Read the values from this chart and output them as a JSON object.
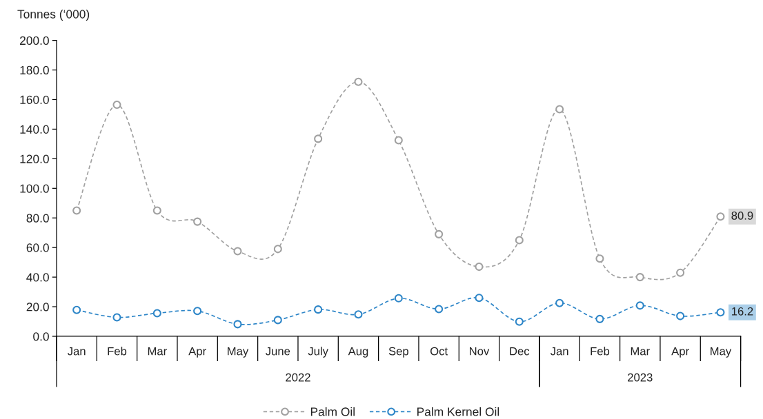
{
  "chart_data": {
    "type": "line",
    "ylabel": "Tonnes (‘000)",
    "categories": [
      "Jan",
      "Feb",
      "Mar",
      "Apr",
      "May",
      "June",
      "July",
      "Aug",
      "Sep",
      "Oct",
      "Nov",
      "Dec",
      "Jan",
      "Feb",
      "Mar",
      "Apr",
      "May"
    ],
    "ylim": [
      0,
      200
    ],
    "yticks": [
      {
        "value": 0,
        "label": "0.0"
      },
      {
        "value": 20,
        "label": "20.0"
      },
      {
        "value": 40,
        "label": "40.0"
      },
      {
        "value": 60,
        "label": "60.0"
      },
      {
        "value": 80,
        "label": "80.0"
      },
      {
        "value": 100,
        "label": "100.0"
      },
      {
        "value": 120,
        "label": "120.0"
      },
      {
        "value": 140,
        "label": "140.0"
      },
      {
        "value": 160,
        "label": "160.0"
      },
      {
        "value": 180,
        "label": "180.0"
      },
      {
        "value": 200,
        "label": "200.0"
      }
    ],
    "annotations": [
      "2022",
      "2023"
    ],
    "marker": "circle",
    "line_style": "dashed",
    "legend": "bottom",
    "series": [
      {
        "name": "Palm Oil",
        "color": "#a0a0a0",
        "values": [
          85.0,
          156.5,
          85.0,
          77.5,
          57.5,
          59.0,
          133.5,
          172.0,
          132.5,
          69.0,
          47.0,
          65.0,
          153.5,
          52.5,
          40.0,
          43.0,
          80.9
        ],
        "value_labels": [
          null,
          null,
          null,
          null,
          null,
          null,
          null,
          null,
          null,
          null,
          null,
          null,
          null,
          null,
          null,
          null,
          "80.9"
        ]
      },
      {
        "name": "Palm Kernel Oil",
        "color": "#2e86c8",
        "values": [
          17.8,
          12.8,
          15.6,
          17.1,
          8.2,
          11.0,
          18.1,
          14.8,
          25.7,
          18.4,
          26.0,
          9.9,
          22.5,
          11.7,
          20.8,
          13.7,
          16.2
        ],
        "value_labels": [
          null,
          null,
          null,
          null,
          null,
          null,
          null,
          null,
          null,
          null,
          null,
          null,
          null,
          null,
          null,
          null,
          "16.2"
        ]
      }
    ]
  }
}
